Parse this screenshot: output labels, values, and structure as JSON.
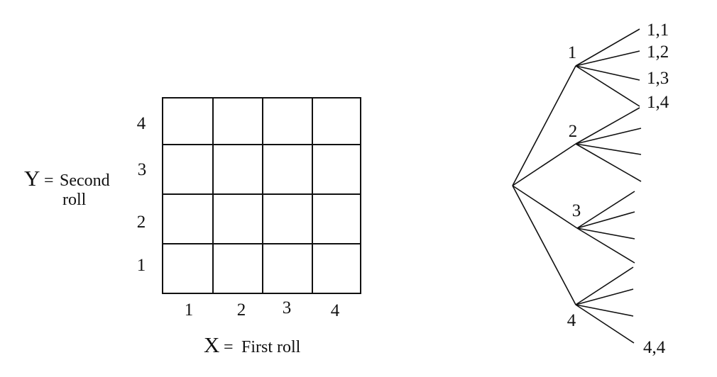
{
  "grid": {
    "y_axis": {
      "letter": "Y",
      "equals": "=",
      "label_line1": "Second",
      "label_line2": "roll"
    },
    "x_axis": {
      "letter": "X",
      "equals": "=",
      "label": "First roll"
    },
    "x_ticks": [
      "1",
      "2",
      "3",
      "4"
    ],
    "y_ticks": [
      "4",
      "3",
      "2",
      "1"
    ]
  },
  "tree": {
    "first_level": [
      "1",
      "2",
      "3",
      "4"
    ],
    "outcome_labels": [
      "1,1",
      "1,2",
      "1,3",
      "1,4",
      "4,4"
    ]
  }
}
